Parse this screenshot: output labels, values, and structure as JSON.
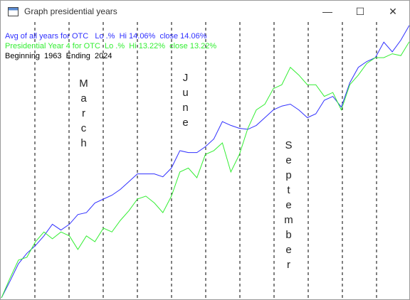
{
  "window": {
    "title": "Graph presidential years"
  },
  "chart_data": {
    "type": "line",
    "legend_lines": [
      "Avg of all years for OTC   Lo .%  Hi 14.06%  close 14.06%",
      "Presidential Year 4 for OTC  Lo .%  Hi 13.22%  close 13.22%",
      "Beginning  1963  Ending  2024"
    ],
    "annotations": [
      "March",
      "June",
      "September"
    ],
    "ylim": [
      0,
      14.2
    ],
    "series": [
      {
        "name": "Avg of all years for OTC",
        "color": "#3030ff",
        "values": [
          0,
          0.85,
          1.76,
          2.3,
          2.7,
          3.2,
          3.8,
          3.5,
          3.8,
          4.3,
          4.4,
          4.9,
          5.1,
          5.3,
          5.6,
          6.0,
          6.4,
          6.4,
          6.4,
          6.25,
          6.7,
          7.6,
          7.5,
          7.5,
          7.8,
          8.2,
          9.1,
          8.9,
          8.75,
          8.7,
          8.9,
          9.3,
          9.7,
          9.9,
          10.0,
          9.7,
          9.3,
          9.5,
          10.2,
          10.4,
          9.85,
          11.1,
          11.9,
          12.2,
          12.4,
          13.2,
          12.7,
          13.3,
          14.06
        ]
      },
      {
        "name": "Presidential Year 4 for OTC",
        "color": "#33ee33",
        "values": [
          0,
          1.0,
          1.95,
          2.1,
          2.9,
          3.4,
          3.05,
          3.4,
          3.2,
          2.5,
          3.2,
          2.9,
          3.6,
          3.4,
          4.0,
          4.5,
          5.1,
          5.25,
          4.9,
          4.4,
          5.25,
          6.5,
          6.7,
          6.2,
          7.4,
          7.6,
          8.0,
          6.5,
          7.4,
          8.75,
          9.7,
          10.0,
          10.8,
          11.0,
          11.9,
          11.5,
          11.0,
          11.0,
          10.4,
          10.6,
          9.7,
          11.0,
          11.5,
          12.1,
          12.4,
          12.4,
          12.6,
          12.5,
          13.22
        ]
      }
    ]
  }
}
